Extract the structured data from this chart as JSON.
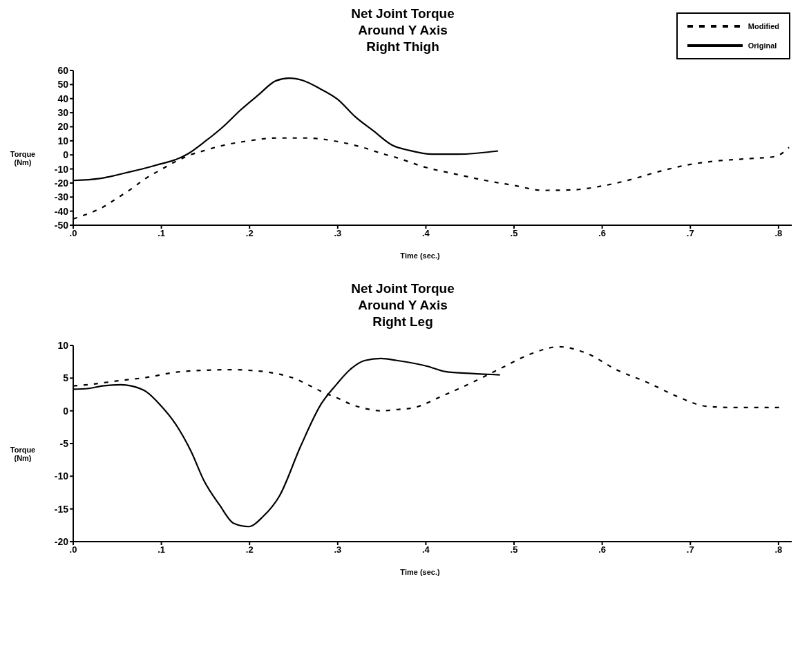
{
  "chart_data": [
    {
      "type": "line",
      "title": "Net Joint Torque\nAround Y Axis\nRight Thigh",
      "xlabel": "Time (sec.)",
      "ylabel": "Torque\n(Nm)",
      "legend": "top right",
      "grid": false,
      "xlim": [
        0,
        0.815
      ],
      "xticks": [
        {
          "value": 0,
          "label": ".0"
        },
        {
          "value": 0.1,
          "label": ".1"
        },
        {
          "value": 0.2,
          "label": ".2"
        },
        {
          "value": 0.3,
          "label": ".3"
        },
        {
          "value": 0.4,
          "label": ".4"
        },
        {
          "value": 0.5,
          "label": ".5"
        },
        {
          "value": 0.6,
          "label": ".6"
        },
        {
          "value": 0.7,
          "label": ".7"
        },
        {
          "value": 0.8,
          "label": ".8"
        }
      ],
      "ylim": [
        -50,
        60
      ],
      "yticks": [
        -50,
        -40,
        -30,
        -20,
        -10,
        0,
        10,
        20,
        30,
        40,
        50,
        60
      ],
      "series": [
        {
          "name": "Modified",
          "color": "#000000",
          "line_style": "dashed",
          "x": [
            0,
            0.016,
            0.032,
            0.05,
            0.067,
            0.082,
            0.098,
            0.114,
            0.132,
            0.15,
            0.167,
            0.197,
            0.232,
            0.265,
            0.297,
            0.33,
            0.35,
            0.366,
            0.4,
            0.434,
            0.467,
            0.5,
            0.533,
            0.566,
            0.599,
            0.631,
            0.664,
            0.697,
            0.73,
            0.766,
            0.796,
            0.812
          ],
          "values": [
            -45.5,
            -42,
            -37.7,
            -30.7,
            -23.7,
            -16.8,
            -11,
            -5.4,
            -0.2,
            3.3,
            6.3,
            9.8,
            12,
            12,
            9.8,
            5,
            1,
            -1.8,
            -8.9,
            -13.7,
            -18.1,
            -21.7,
            -25.2,
            -24.9,
            -22.2,
            -17.8,
            -11.9,
            -7.1,
            -4.3,
            -2.7,
            -1.2,
            5.3
          ]
        },
        {
          "name": "Original",
          "color": "#000000",
          "line_style": "solid",
          "x": [
            0,
            0.03,
            0.06,
            0.09,
            0.13,
            0.15,
            0.17,
            0.19,
            0.21,
            0.23,
            0.245,
            0.26,
            0.28,
            0.3,
            0.32,
            0.34,
            0.362,
            0.381,
            0.407,
            0.437,
            0.482
          ],
          "values": [
            -18.2,
            -16.8,
            -12.7,
            -8,
            0.7,
            9.8,
            20,
            32,
            42.6,
            52.7,
            54.5,
            53,
            47,
            39.4,
            27,
            17.3,
            6.8,
            3.2,
            0.5,
            0.5,
            2.8
          ]
        }
      ]
    },
    {
      "type": "line",
      "title": "Net Joint Torque\nAround Y Axis\nRight Leg",
      "xlabel": "Time (sec.)",
      "ylabel": "Torque\n(Nm)",
      "grid": false,
      "xlim": [
        0,
        0.815
      ],
      "xticks": [
        {
          "value": 0,
          "label": ".0"
        },
        {
          "value": 0.1,
          "label": ".1"
        },
        {
          "value": 0.2,
          "label": ".2"
        },
        {
          "value": 0.3,
          "label": ".3"
        },
        {
          "value": 0.4,
          "label": ".4"
        },
        {
          "value": 0.5,
          "label": ".5"
        },
        {
          "value": 0.6,
          "label": ".6"
        },
        {
          "value": 0.7,
          "label": ".7"
        },
        {
          "value": 0.8,
          "label": ".8"
        }
      ],
      "ylim": [
        -20,
        10
      ],
      "yticks": [
        -20,
        -15,
        -10,
        -5,
        0,
        5,
        10
      ],
      "series": [
        {
          "color": "#000000",
          "line_style": "dashed",
          "x": [
            0,
            0.017,
            0.051,
            0.083,
            0.116,
            0.148,
            0.184,
            0.199,
            0.216,
            0.234,
            0.252,
            0.269,
            0.284,
            0.299,
            0.317,
            0.333,
            0.349,
            0.368,
            0.387,
            0.419,
            0.452,
            0.485,
            0.519,
            0.551,
            0.584,
            0.616,
            0.652,
            0.685,
            0.718,
            0.751,
            0.801
          ],
          "values": [
            3.8,
            4,
            4.6,
            5.1,
            5.9,
            6.2,
            6.3,
            6.2,
            6,
            5.6,
            4.9,
            3.8,
            2.8,
            2,
            0.9,
            0.3,
            0,
            0.2,
            0.5,
            2.3,
            4.3,
            6.5,
            8.7,
            9.8,
            8.7,
            6.3,
            4.3,
            2.2,
            0.7,
            0.5,
            0.5
          ]
        },
        {
          "color": "#000000",
          "line_style": "solid",
          "x": [
            0,
            0.016,
            0.033,
            0.054,
            0.066,
            0.083,
            0.098,
            0.116,
            0.134,
            0.148,
            0.166,
            0.182,
            0.199,
            0.215,
            0.234,
            0.258,
            0.281,
            0.299,
            0.314,
            0.331,
            0.349,
            0.367,
            0.402,
            0.422,
            0.452,
            0.484
          ],
          "values": [
            3.3,
            3.4,
            3.8,
            4,
            3.8,
            2.9,
            1,
            -2,
            -6.3,
            -10.6,
            -14.4,
            -17.2,
            -17.7,
            -16.2,
            -13,
            -5.4,
            1,
            4.1,
            6.3,
            7.7,
            8,
            7.7,
            6.8,
            6,
            5.7,
            5.5
          ]
        }
      ]
    }
  ]
}
